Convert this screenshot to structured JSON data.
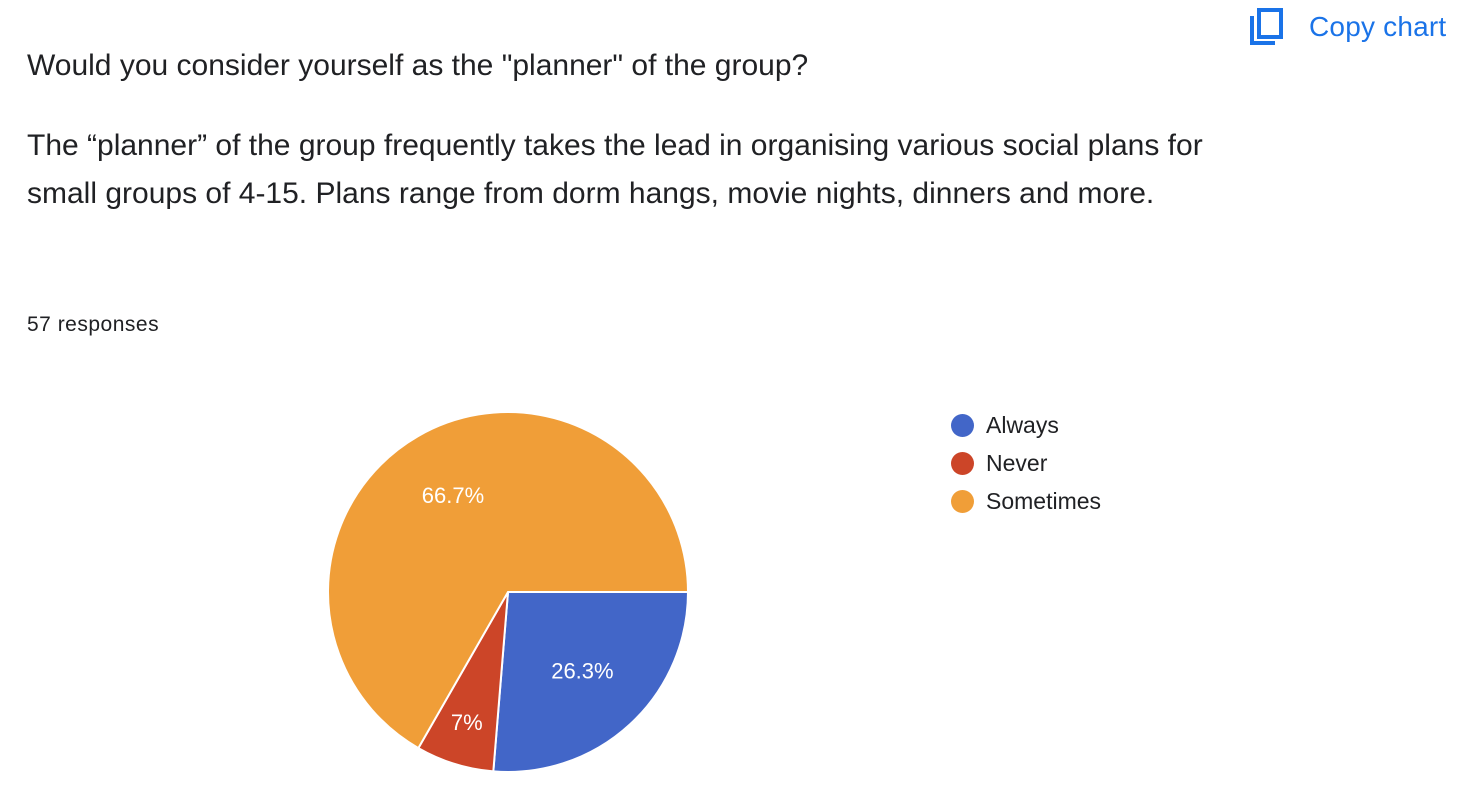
{
  "toolbar": {
    "copy_chart_label": "Copy chart",
    "copy_icon": "copy-icon",
    "accent_color": "#1a73e8"
  },
  "question": {
    "title": "Would you consider yourself as the \"planner\" of the group?",
    "description": "The “planner” of the group frequently takes the lead in organising various social plans for small groups of 4-15. Plans range from dorm hangs, movie nights, dinners and more.",
    "responses": "57 responses"
  },
  "chart_data": {
    "type": "pie",
    "legend_position": "right",
    "slices": [
      {
        "name": "Always",
        "value": 26.3,
        "label": "26.3%",
        "color": "#4266c8"
      },
      {
        "name": "Never",
        "value": 7,
        "label": "7%",
        "color": "#cc4528"
      },
      {
        "name": "Sometimes",
        "value": 66.7,
        "label": "66.7%",
        "color": "#f09e38"
      }
    ]
  }
}
